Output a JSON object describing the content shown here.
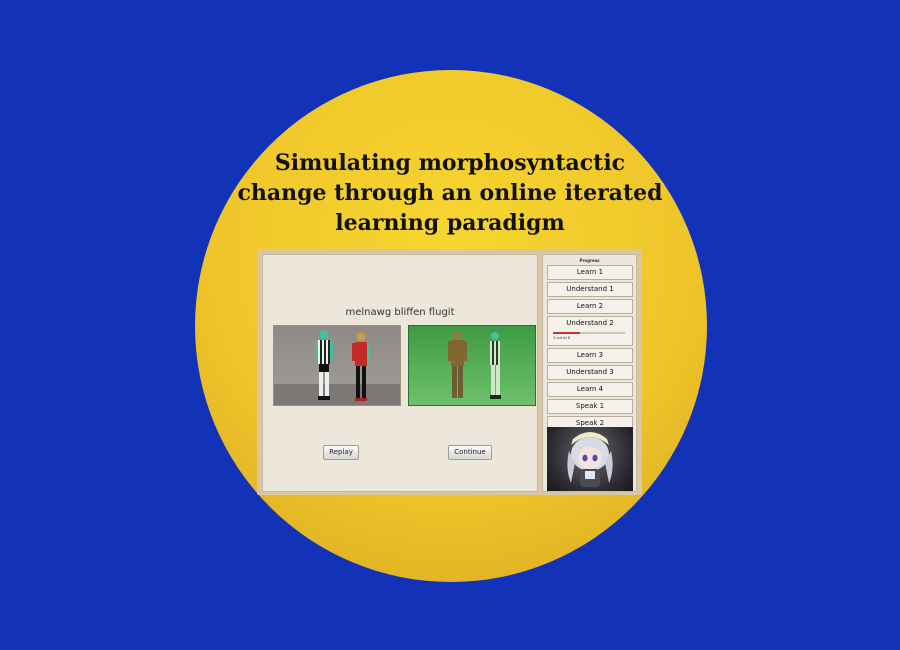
{
  "title_lines": [
    "Simulating morphosyntactic",
    "change through an online iterated",
    "learning paradigm"
  ],
  "task": {
    "sentence": "melnawg bliffen flugit",
    "replay_label": "Replay",
    "continue_label": "Continue",
    "selected_choice": "right"
  },
  "progress": {
    "title": "Progress",
    "steps": [
      {
        "label": "Learn 1"
      },
      {
        "label": "Understand 1"
      },
      {
        "label": "Learn 2"
      },
      {
        "label": "Understand 2",
        "active": true,
        "caption": "3 out of 8",
        "value": 0.375
      },
      {
        "label": "Learn 3"
      },
      {
        "label": "Understand 3"
      },
      {
        "label": "Learn 4"
      },
      {
        "label": "Speak 1"
      },
      {
        "label": "Speak 2"
      }
    ]
  },
  "colors": {
    "background": "#1233b8",
    "circle": "#efc62a",
    "selected": "#4caf50",
    "progress_fill": "#c8322c"
  }
}
